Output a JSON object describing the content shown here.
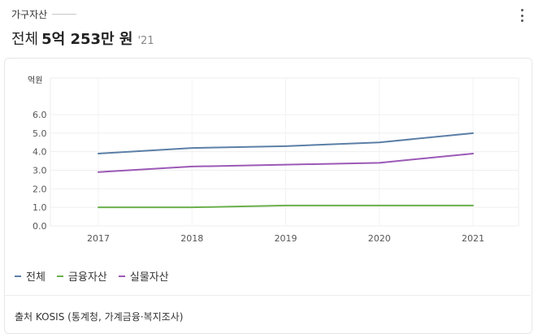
{
  "header": {
    "label": "가구자산",
    "more_icon": "more-vertical-icon"
  },
  "summary": {
    "prefix": "전체",
    "value": "5억 253만 원",
    "year": "'21"
  },
  "chart_data": {
    "type": "line",
    "x": [
      "2017",
      "2018",
      "2019",
      "2020",
      "2021"
    ],
    "ylabel": "억원",
    "ylim": [
      0,
      6
    ],
    "yticks": [
      "0.0",
      "1.0",
      "2.0",
      "3.0",
      "4.0",
      "5.0",
      "6.0"
    ],
    "grid": true,
    "legend_position": "bottom-left",
    "series": [
      {
        "name": "전체",
        "color": "#5b7fa6",
        "values": [
          3.9,
          4.2,
          4.3,
          4.5,
          5.0
        ]
      },
      {
        "name": "금융자산",
        "color": "#6ab04c",
        "values": [
          1.0,
          1.0,
          1.1,
          1.1,
          1.1
        ]
      },
      {
        "name": "실물자산",
        "color": "#9b59b6",
        "values": [
          2.9,
          3.2,
          3.3,
          3.4,
          3.9
        ]
      }
    ]
  },
  "footer": {
    "source": "출처 KOSIS (통계청, 가계금융·복지조사)"
  }
}
